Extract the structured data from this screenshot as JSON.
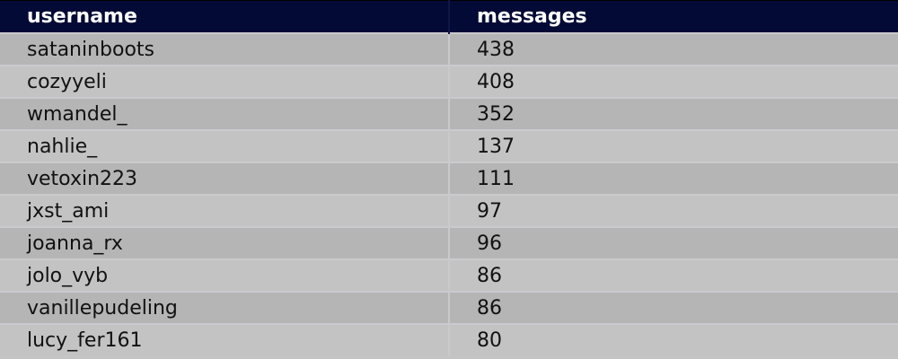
{
  "table": {
    "headers": [
      "username",
      "messages"
    ],
    "rows": [
      [
        "sataninboots",
        "438"
      ],
      [
        "cozyyeli",
        "408"
      ],
      [
        "wmandel_",
        "352"
      ],
      [
        "nahlie_",
        "137"
      ],
      [
        "vetoxin223",
        "111"
      ],
      [
        "jxst_ami",
        "97"
      ],
      [
        "joanna_rx",
        "96"
      ],
      [
        "jolo_vyb",
        "86"
      ],
      [
        "vanillepudeling",
        "86"
      ],
      [
        "lucy_fer161",
        "80"
      ]
    ]
  },
  "colors": {
    "header_bg": "#030a35",
    "row_odd": "#b5b5b5",
    "row_even": "#c3c3c3"
  }
}
